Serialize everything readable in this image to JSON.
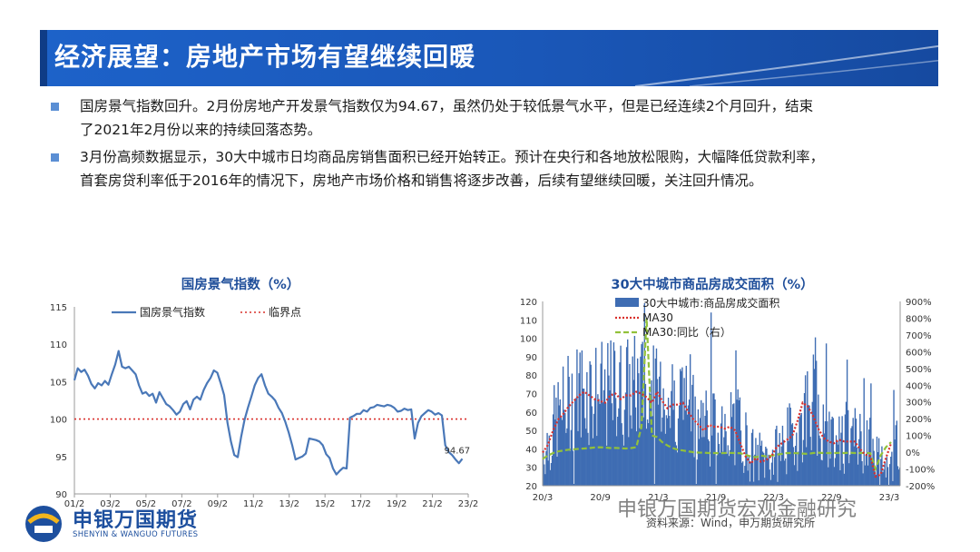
{
  "header": {
    "title": "经济展望：房地产市场有望继续回暖"
  },
  "bullets": [
    {
      "line1": "国房景气指数回升。2月份房地产开发景气指数仅为94.67，虽然仍处于较低景气水平，但是已经连续2个月回升，结束",
      "line2": "了2021年2月份以来的持续回落态势。"
    },
    {
      "line1": "3月份高频数据显示，30大中城市日均商品房销售面积已经开始转正。预计在央行和各地放松限购，大幅降低贷款利率，",
      "line2": "首套房贷利率低于2016年的情况下，房地产市场价格和销售将逐步改善，后续有望继续回暖，关注回升情况。"
    }
  ],
  "chart_data": [
    {
      "type": "line",
      "title": "国房景气指数（%）",
      "xlabel": "",
      "ylabel": "",
      "ylim": [
        90,
        115
      ],
      "yticks": [
        "90",
        "95",
        "100",
        "105",
        "110",
        "115"
      ],
      "xticks": [
        "01/2",
        "03/2",
        "05/2",
        "07/2",
        "09/2",
        "11/2",
        "13/2",
        "15/2",
        "17/2",
        "19/2",
        "21/2",
        "23/2"
      ],
      "legend": [
        "国房景气指数",
        "临界点"
      ],
      "legend_position": "top-left",
      "critical_value": 100,
      "annotation": "94.67",
      "colors": {
        "series": "#4a78b8",
        "critical": "#d9302c"
      },
      "series": [
        {
          "name": "国房景气指数",
          "x_start": 2001.083,
          "x_end": 2023.083,
          "values": [
            105.2,
            106.8,
            106.3,
            106.6,
            105.8,
            104.7,
            104.1,
            104.8,
            104.5,
            105.1,
            104.6,
            106.0,
            107.3,
            109.1,
            107.0,
            106.8,
            107.0,
            106.5,
            106.0,
            104.5,
            103.4,
            103.6,
            103.1,
            103.4,
            102.2,
            103.6,
            102.8,
            102.0,
            101.7,
            101.2,
            100.6,
            101.0,
            102.0,
            102.4,
            101.3,
            102.6,
            103.0,
            102.6,
            103.9,
            104.8,
            105.5,
            106.5,
            106.2,
            104.8,
            103.2,
            99.5,
            97.0,
            95.2,
            94.9,
            97.6,
            99.9,
            101.5,
            103.0,
            104.5,
            105.5,
            106.0,
            104.5,
            103.4,
            103.0,
            102.5,
            101.5,
            100.8,
            99.6,
            98.2,
            96.5,
            94.6,
            94.8,
            95.0,
            95.4,
            97.4,
            97.3,
            97.2,
            97.0,
            96.5,
            95.3,
            94.8,
            93.4,
            92.6,
            93.1,
            93.5,
            93.4,
            100.2,
            100.4,
            100.7,
            100.7,
            101.2,
            101.0,
            101.5,
            101.6,
            101.9,
            101.8,
            101.7,
            101.9,
            101.8,
            101.5,
            101.0,
            101.1,
            101.4,
            101.2,
            101.3,
            97.4,
            99.5,
            100.4,
            100.8,
            101.2,
            101.0,
            100.6,
            100.8,
            100.5,
            96.5,
            95.6,
            95.2,
            94.6,
            94.1,
            94.7
          ]
        }
      ]
    },
    {
      "type": "bar",
      "title": "30大中城市商品房成交面积（%）",
      "ylim": [
        20,
        120
      ],
      "y2lim": [
        -200,
        900
      ],
      "yticks": [
        "20",
        "30",
        "40",
        "50",
        "60",
        "70",
        "80",
        "90",
        "100",
        "110",
        "120"
      ],
      "y2ticks": [
        "-200%",
        "-100%",
        "0%",
        "100%",
        "200%",
        "300%",
        "400%",
        "500%",
        "600%",
        "700%",
        "800%",
        "900%"
      ],
      "xticks": [
        "20/3",
        "20/9",
        "21/3",
        "21/9",
        "22/3",
        "22/9",
        "23/3"
      ],
      "legend": [
        "30大中城市:商品房成交面积",
        "MA30",
        "MA30:同比（右）"
      ],
      "legend_position": "top",
      "colors": {
        "bars": "#3f6db3",
        "ma30": "#d9302c",
        "yoy": "#92c13a"
      },
      "ma30": [
        38,
        42,
        50,
        56,
        59,
        63,
        66,
        69,
        71,
        69,
        67,
        66,
        65,
        69,
        70,
        67,
        69,
        69,
        71,
        70,
        68,
        65,
        71,
        66,
        62,
        64,
        64,
        65,
        60,
        56,
        53,
        50,
        53,
        52,
        52,
        51,
        52,
        50,
        43,
        36,
        32,
        35,
        33,
        34,
        36,
        41,
        43,
        45,
        47,
        55,
        65,
        63,
        58,
        51,
        46,
        44,
        43,
        45,
        44,
        44,
        44,
        40,
        37,
        36,
        25,
        26,
        35,
        43
      ],
      "yoy": [
        -40,
        -20,
        -5,
        5,
        10,
        15,
        18,
        20,
        22,
        25,
        28,
        30,
        28,
        25,
        26,
        24,
        22,
        25,
        30,
        150,
        800,
        100,
        90,
        60,
        40,
        25,
        15,
        10,
        5,
        0,
        -2,
        -3,
        -5,
        -5,
        -6,
        -5,
        -4,
        -5,
        -6,
        -15,
        -25,
        -30,
        -20,
        -25,
        -20,
        -15,
        -10,
        -5,
        -5,
        -6,
        -8,
        -10,
        -5,
        -3,
        -5,
        -5,
        -5,
        -4,
        -5,
        -3,
        -5,
        -5,
        -4,
        -6,
        -100,
        -20,
        30,
        60
      ],
      "source": "资料来源：Wind，申万期货研究所"
    }
  ],
  "logo": {
    "cn": "申银万国期货",
    "en": "SHENYIN & WANGUO FUTURES"
  },
  "watermark": "申银万国期货宏观金融研究"
}
